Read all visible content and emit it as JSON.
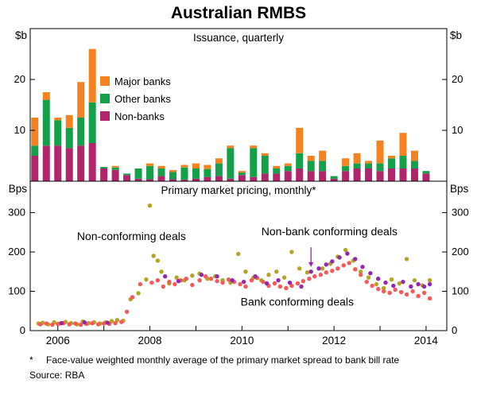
{
  "title": "Australian RMBS",
  "panels": {
    "top": {
      "title": "Issuance, quarterly",
      "unit_left": "$b",
      "unit_right": "$b"
    },
    "bottom": {
      "title": "Primary market pricing, monthly*",
      "unit_left": "Bps",
      "unit_right": "Bps"
    }
  },
  "x_axis": {
    "range": [
      2005.4,
      2014.45
    ],
    "tick_years": [
      2006,
      2007,
      2008,
      2009,
      2010,
      2011,
      2012,
      2013,
      2014
    ],
    "labels": [
      "2006",
      "2008",
      "2010",
      "2012",
      "2014"
    ],
    "label_years": [
      2006,
      2008,
      2010,
      2012,
      2014
    ]
  },
  "chart_data": [
    {
      "type": "bar",
      "stacked": true,
      "title": "Issuance, quarterly",
      "ylabel": "$b",
      "ylim": [
        0,
        30
      ],
      "yticks": [
        10,
        20
      ],
      "categories": [
        2005.5,
        2005.75,
        2006.0,
        2006.25,
        2006.5,
        2006.75,
        2007.0,
        2007.25,
        2007.5,
        2007.75,
        2008.0,
        2008.25,
        2008.5,
        2008.75,
        2009.0,
        2009.25,
        2009.5,
        2009.75,
        2010.0,
        2010.25,
        2010.5,
        2010.75,
        2011.0,
        2011.25,
        2011.5,
        2011.75,
        2012.0,
        2012.25,
        2012.5,
        2012.75,
        2013.0,
        2013.25,
        2013.5,
        2013.75,
        2014.0
      ],
      "series": [
        {
          "name": "Non-banks",
          "color": "#b0256b",
          "values": [
            5,
            7,
            7,
            6.5,
            7,
            7.5,
            2.5,
            2.2,
            1.2,
            0.5,
            0.4,
            1,
            0.4,
            0.3,
            0.5,
            0.8,
            1,
            0.5,
            1.2,
            0.8,
            1.5,
            1.5,
            2,
            2.5,
            2,
            2,
            0.5,
            2,
            2.5,
            2.5,
            2,
            2.5,
            2.5,
            2.5,
            1.5
          ]
        },
        {
          "name": "Other banks",
          "color": "#13a049",
          "values": [
            2,
            9,
            5,
            4,
            5.5,
            8,
            0.3,
            0.5,
            0.3,
            2,
            2.6,
            1.5,
            1.4,
            2.4,
            2,
            1.6,
            2.5,
            6,
            0.5,
            5.7,
            3.5,
            1,
            1,
            3,
            2,
            2,
            0.5,
            1,
            1,
            1,
            1.5,
            2,
            2.5,
            1.5,
            0.5
          ]
        },
        {
          "name": "Major banks",
          "color": "#f58220",
          "values": [
            5.5,
            1.5,
            0.5,
            2.5,
            7,
            10.5,
            0,
            0.3,
            0,
            0,
            0.5,
            0.5,
            0.4,
            0.5,
            1,
            0.8,
            1,
            0.5,
            0.3,
            0.5,
            0.5,
            0.5,
            0.5,
            5,
            1,
            2,
            0,
            1.5,
            2,
            0.5,
            4.5,
            0.5,
            4.5,
            2,
            0
          ]
        }
      ],
      "legend": [
        {
          "label": "Major banks",
          "color": "#f58220"
        },
        {
          "label": "Other banks",
          "color": "#13a049"
        },
        {
          "label": "Non-banks",
          "color": "#b0256b"
        }
      ]
    },
    {
      "type": "scatter",
      "title": "Primary market pricing, monthly*",
      "ylabel": "Bps",
      "ylim": [
        0,
        380
      ],
      "yticks": [
        0,
        100,
        200,
        300
      ],
      "series": [
        {
          "name": "Non-conforming deals",
          "color": "#b5a41f",
          "points": [
            [
              2005.58,
              18
            ],
            [
              2005.67,
              20
            ],
            [
              2005.79,
              16
            ],
            [
              2005.92,
              21
            ],
            [
              2006.04,
              18
            ],
            [
              2006.17,
              22
            ],
            [
              2006.29,
              19
            ],
            [
              2006.42,
              16
            ],
            [
              2006.54,
              23
            ],
            [
              2006.67,
              19
            ],
            [
              2006.79,
              21
            ],
            [
              2006.92,
              18
            ],
            [
              2007.04,
              21
            ],
            [
              2007.17,
              24
            ],
            [
              2007.29,
              27
            ],
            [
              2007.42,
              25
            ],
            [
              2007.58,
              80
            ],
            [
              2007.75,
              95
            ],
            [
              2007.92,
              130
            ],
            [
              2008.0,
              318
            ],
            [
              2008.08,
              190
            ],
            [
              2008.17,
              178
            ],
            [
              2008.25,
              150
            ],
            [
              2008.42,
              120
            ],
            [
              2008.58,
              135
            ],
            [
              2008.75,
              128
            ],
            [
              2008.92,
              140
            ],
            [
              2009.08,
              145
            ],
            [
              2009.25,
              132
            ],
            [
              2009.42,
              138
            ],
            [
              2009.58,
              128
            ],
            [
              2009.75,
              122
            ],
            [
              2009.92,
              195
            ],
            [
              2010.08,
              150
            ],
            [
              2010.25,
              135
            ],
            [
              2010.42,
              128
            ],
            [
              2010.58,
              142
            ],
            [
              2010.75,
              150
            ],
            [
              2010.92,
              135
            ],
            [
              2011.08,
              200
            ],
            [
              2011.25,
              158
            ],
            [
              2011.42,
              148
            ],
            [
              2011.58,
              138
            ],
            [
              2011.75,
              158
            ],
            [
              2011.92,
              170
            ],
            [
              2012.08,
              188
            ],
            [
              2012.25,
              205
            ],
            [
              2012.42,
              178
            ],
            [
              2012.58,
              150
            ],
            [
              2012.75,
              135
            ],
            [
              2012.92,
              118
            ],
            [
              2013.08,
              108
            ],
            [
              2013.25,
              130
            ],
            [
              2013.42,
              120
            ],
            [
              2013.58,
              182
            ],
            [
              2013.75,
              128
            ],
            [
              2013.92,
              115
            ],
            [
              2014.08,
              128
            ]
          ]
        },
        {
          "name": "Bank conforming deals",
          "color": "#f7595b",
          "points": [
            [
              2005.62,
              16
            ],
            [
              2005.75,
              18
            ],
            [
              2005.88,
              15
            ],
            [
              2006.0,
              17
            ],
            [
              2006.12,
              19
            ],
            [
              2006.25,
              16
            ],
            [
              2006.38,
              18
            ],
            [
              2006.5,
              15
            ],
            [
              2006.62,
              17
            ],
            [
              2006.75,
              19
            ],
            [
              2006.88,
              16
            ],
            [
              2007.0,
              18
            ],
            [
              2007.12,
              17
            ],
            [
              2007.25,
              19
            ],
            [
              2007.38,
              22
            ],
            [
              2007.5,
              48
            ],
            [
              2007.62,
              85
            ],
            [
              2007.79,
              118
            ],
            [
              2008.04,
              122
            ],
            [
              2008.17,
              128
            ],
            [
              2008.29,
              112
            ],
            [
              2008.42,
              124
            ],
            [
              2008.54,
              118
            ],
            [
              2008.67,
              128
            ],
            [
              2008.79,
              132
            ],
            [
              2008.92,
              116
            ],
            [
              2009.08,
              128
            ],
            [
              2009.21,
              138
            ],
            [
              2009.33,
              132
            ],
            [
              2009.46,
              126
            ],
            [
              2009.58,
              122
            ],
            [
              2009.71,
              130
            ],
            [
              2009.83,
              124
            ],
            [
              2009.96,
              118
            ],
            [
              2010.08,
              112
            ],
            [
              2010.21,
              128
            ],
            [
              2010.33,
              134
            ],
            [
              2010.46,
              124
            ],
            [
              2010.58,
              114
            ],
            [
              2010.71,
              120
            ],
            [
              2010.83,
              112
            ],
            [
              2010.96,
              108
            ],
            [
              2011.08,
              114
            ],
            [
              2011.21,
              120
            ],
            [
              2011.33,
              126
            ],
            [
              2011.46,
              132
            ],
            [
              2011.58,
              138
            ],
            [
              2011.71,
              142
            ],
            [
              2011.83,
              148
            ],
            [
              2011.96,
              152
            ],
            [
              2012.08,
              158
            ],
            [
              2012.21,
              166
            ],
            [
              2012.33,
              172
            ],
            [
              2012.46,
              156
            ],
            [
              2012.58,
              142
            ],
            [
              2012.71,
              124
            ],
            [
              2012.83,
              114
            ],
            [
              2012.96,
              106
            ],
            [
              2013.08,
              100
            ],
            [
              2013.21,
              96
            ],
            [
              2013.33,
              104
            ],
            [
              2013.46,
              98
            ],
            [
              2013.58,
              92
            ],
            [
              2013.71,
              100
            ],
            [
              2013.83,
              88
            ],
            [
              2013.96,
              96
            ],
            [
              2014.08,
              82
            ]
          ]
        },
        {
          "name": "Non-bank conforming deals",
          "color": "#9327ad",
          "points": [
            [
              2006.08,
              19
            ],
            [
              2006.58,
              21
            ],
            [
              2007.08,
              20
            ],
            [
              2008.33,
              138
            ],
            [
              2008.62,
              126
            ],
            [
              2009.12,
              142
            ],
            [
              2009.46,
              138
            ],
            [
              2009.79,
              128
            ],
            [
              2010.04,
              124
            ],
            [
              2010.29,
              138
            ],
            [
              2010.54,
              120
            ],
            [
              2010.79,
              128
            ],
            [
              2011.04,
              122
            ],
            [
              2011.29,
              112
            ],
            [
              2011.5,
              150
            ],
            [
              2011.67,
              158
            ],
            [
              2011.83,
              168
            ],
            [
              2011.96,
              176
            ],
            [
              2012.12,
              186
            ],
            [
              2012.29,
              196
            ],
            [
              2012.46,
              182
            ],
            [
              2012.62,
              162
            ],
            [
              2012.79,
              146
            ],
            [
              2012.96,
              132
            ],
            [
              2013.12,
              122
            ],
            [
              2013.29,
              114
            ],
            [
              2013.5,
              124
            ],
            [
              2013.67,
              112
            ],
            [
              2013.83,
              118
            ],
            [
              2013.96,
              112
            ],
            [
              2014.08,
              118
            ]
          ]
        }
      ],
      "annotations": [
        {
          "text": "Non-conforming deals",
          "color": "#b5a41f",
          "x": 2007.6,
          "y": 230
        },
        {
          "text": "Non-bank conforming deals",
          "color": "#9327ad",
          "x": 2011.9,
          "y": 243,
          "arrow": {
            "x": 2011.5,
            "y1": 212,
            "y2": 162
          }
        },
        {
          "text": "Bank conforming deals",
          "color": "#f7595b",
          "x": 2011.2,
          "y": 64
        }
      ]
    }
  ],
  "footnote": {
    "marker": "*",
    "text": "Face-value weighted monthly average of the primary market spread to bank bill rate",
    "source": "Source: RBA"
  }
}
